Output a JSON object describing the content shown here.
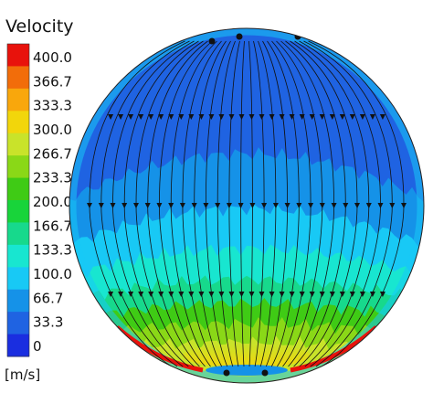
{
  "chart_data": {
    "type": "heatmap",
    "title": "Velocity",
    "unit": "[m/s]",
    "colorbar": {
      "min": 0,
      "max": 400.0,
      "ticks": [
        "400.0",
        "366.7",
        "333.3",
        "300.0",
        "266.7",
        "233.3",
        "200.0",
        "166.7",
        "133.3",
        "100.0",
        "66.7",
        "33.3",
        "0"
      ],
      "colors": [
        "#e8120c",
        "#f26d0a",
        "#f9a70c",
        "#f2d60b",
        "#c9e32a",
        "#8ad817",
        "#3fcb15",
        "#18d43a",
        "#17d98c",
        "#18e6d0",
        "#18c9f5",
        "#1592e8",
        "#1f63e2",
        "#1a2ee0"
      ]
    },
    "field": {
      "shape": "sphere cross-section",
      "streamlines": "top-to-bottom",
      "bands_top_to_bottom_m_per_s": [
        {
          "range": [
            0,
            33.3
          ],
          "color": "#1f63e2"
        },
        {
          "range": [
            33.3,
            66.7
          ],
          "color": "#1592e8"
        },
        {
          "range": [
            66.7,
            100.0
          ],
          "color": "#18c9f5"
        },
        {
          "range": [
            100.0,
            133.3
          ],
          "color": "#18e6d0"
        },
        {
          "range": [
            133.3,
            166.7
          ],
          "color": "#17d98c"
        },
        {
          "range": [
            166.7,
            200.0
          ],
          "color": "#3fcb15"
        },
        {
          "range": [
            200.0,
            233.3
          ],
          "color": "#8ad817"
        },
        {
          "range": [
            233.3,
            266.7
          ],
          "color": "#c9e32a"
        },
        {
          "range": [
            266.7,
            300.0
          ],
          "color": "#f2d60b"
        },
        {
          "range": [
            366.7,
            400.0
          ],
          "color": "#e8120c"
        }
      ]
    }
  }
}
